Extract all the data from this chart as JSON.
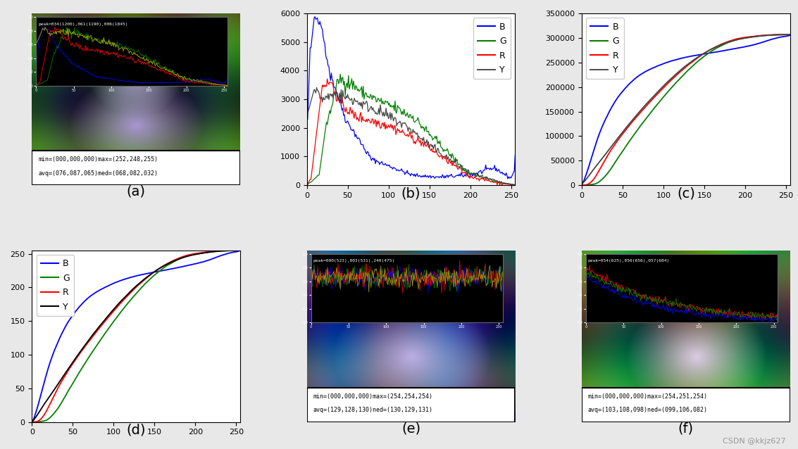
{
  "background_color": "#e8e8e8",
  "subplot_labels": [
    "(a)",
    "(b)",
    "(c)",
    "(d)",
    "(e)",
    "(f)"
  ],
  "subplot_label_fontsize": 14,
  "panel_b": {
    "xlim": [
      0,
      255
    ],
    "ylim": [
      0,
      6000
    ],
    "yticks": [
      0,
      1000,
      2000,
      3000,
      4000,
      5000,
      6000
    ],
    "xticks": [
      0,
      50,
      100,
      150,
      200,
      250
    ],
    "legend": [
      "B",
      "G",
      "R",
      "Y"
    ],
    "colors": [
      "blue",
      "green",
      "red",
      "#555555"
    ]
  },
  "panel_c": {
    "xlim": [
      0,
      255
    ],
    "ylim": [
      0,
      350000
    ],
    "yticks": [
      0,
      50000,
      100000,
      150000,
      200000,
      250000,
      300000,
      350000
    ],
    "xticks": [
      0,
      50,
      100,
      150,
      200,
      250
    ],
    "legend": [
      "B",
      "G",
      "R",
      "Y"
    ],
    "colors": [
      "blue",
      "green",
      "red",
      "#555555"
    ]
  },
  "panel_d": {
    "xlim": [
      0,
      255
    ],
    "ylim": [
      0,
      255
    ],
    "yticks": [
      0,
      50,
      100,
      150,
      200,
      250
    ],
    "xticks": [
      0,
      50,
      100,
      150,
      200,
      250
    ],
    "legend": [
      "B",
      "G",
      "R",
      "Y"
    ],
    "colors": [
      "blue",
      "green",
      "red",
      "black"
    ]
  },
  "text_a_line1": "min=(000,000,000)max=(252,248,255)",
  "text_a_line2": "avq=(076,087,065)med=(068,082,032)",
  "text_e_line1": "min=(000,000,000)max=(254,254,254)",
  "text_e_line2": "avq=(129,128,130)ned=(130,129,131)",
  "text_f_line1": "min=(000,000,000)max=(254,251,254)",
  "text_f_line2": "avq=(103,108,098)ned=(099,106,082)",
  "inset_a_text": "peak=034(1200),061(1190),006(1845)",
  "inset_e_text": "peak=000(523),003(531),240(475)",
  "inset_f_text": "peak=054(625),056(656),057(684)",
  "watermark": "CSDN @kkjz627",
  "watermark_fontsize": 8,
  "watermark_color": "#999999"
}
